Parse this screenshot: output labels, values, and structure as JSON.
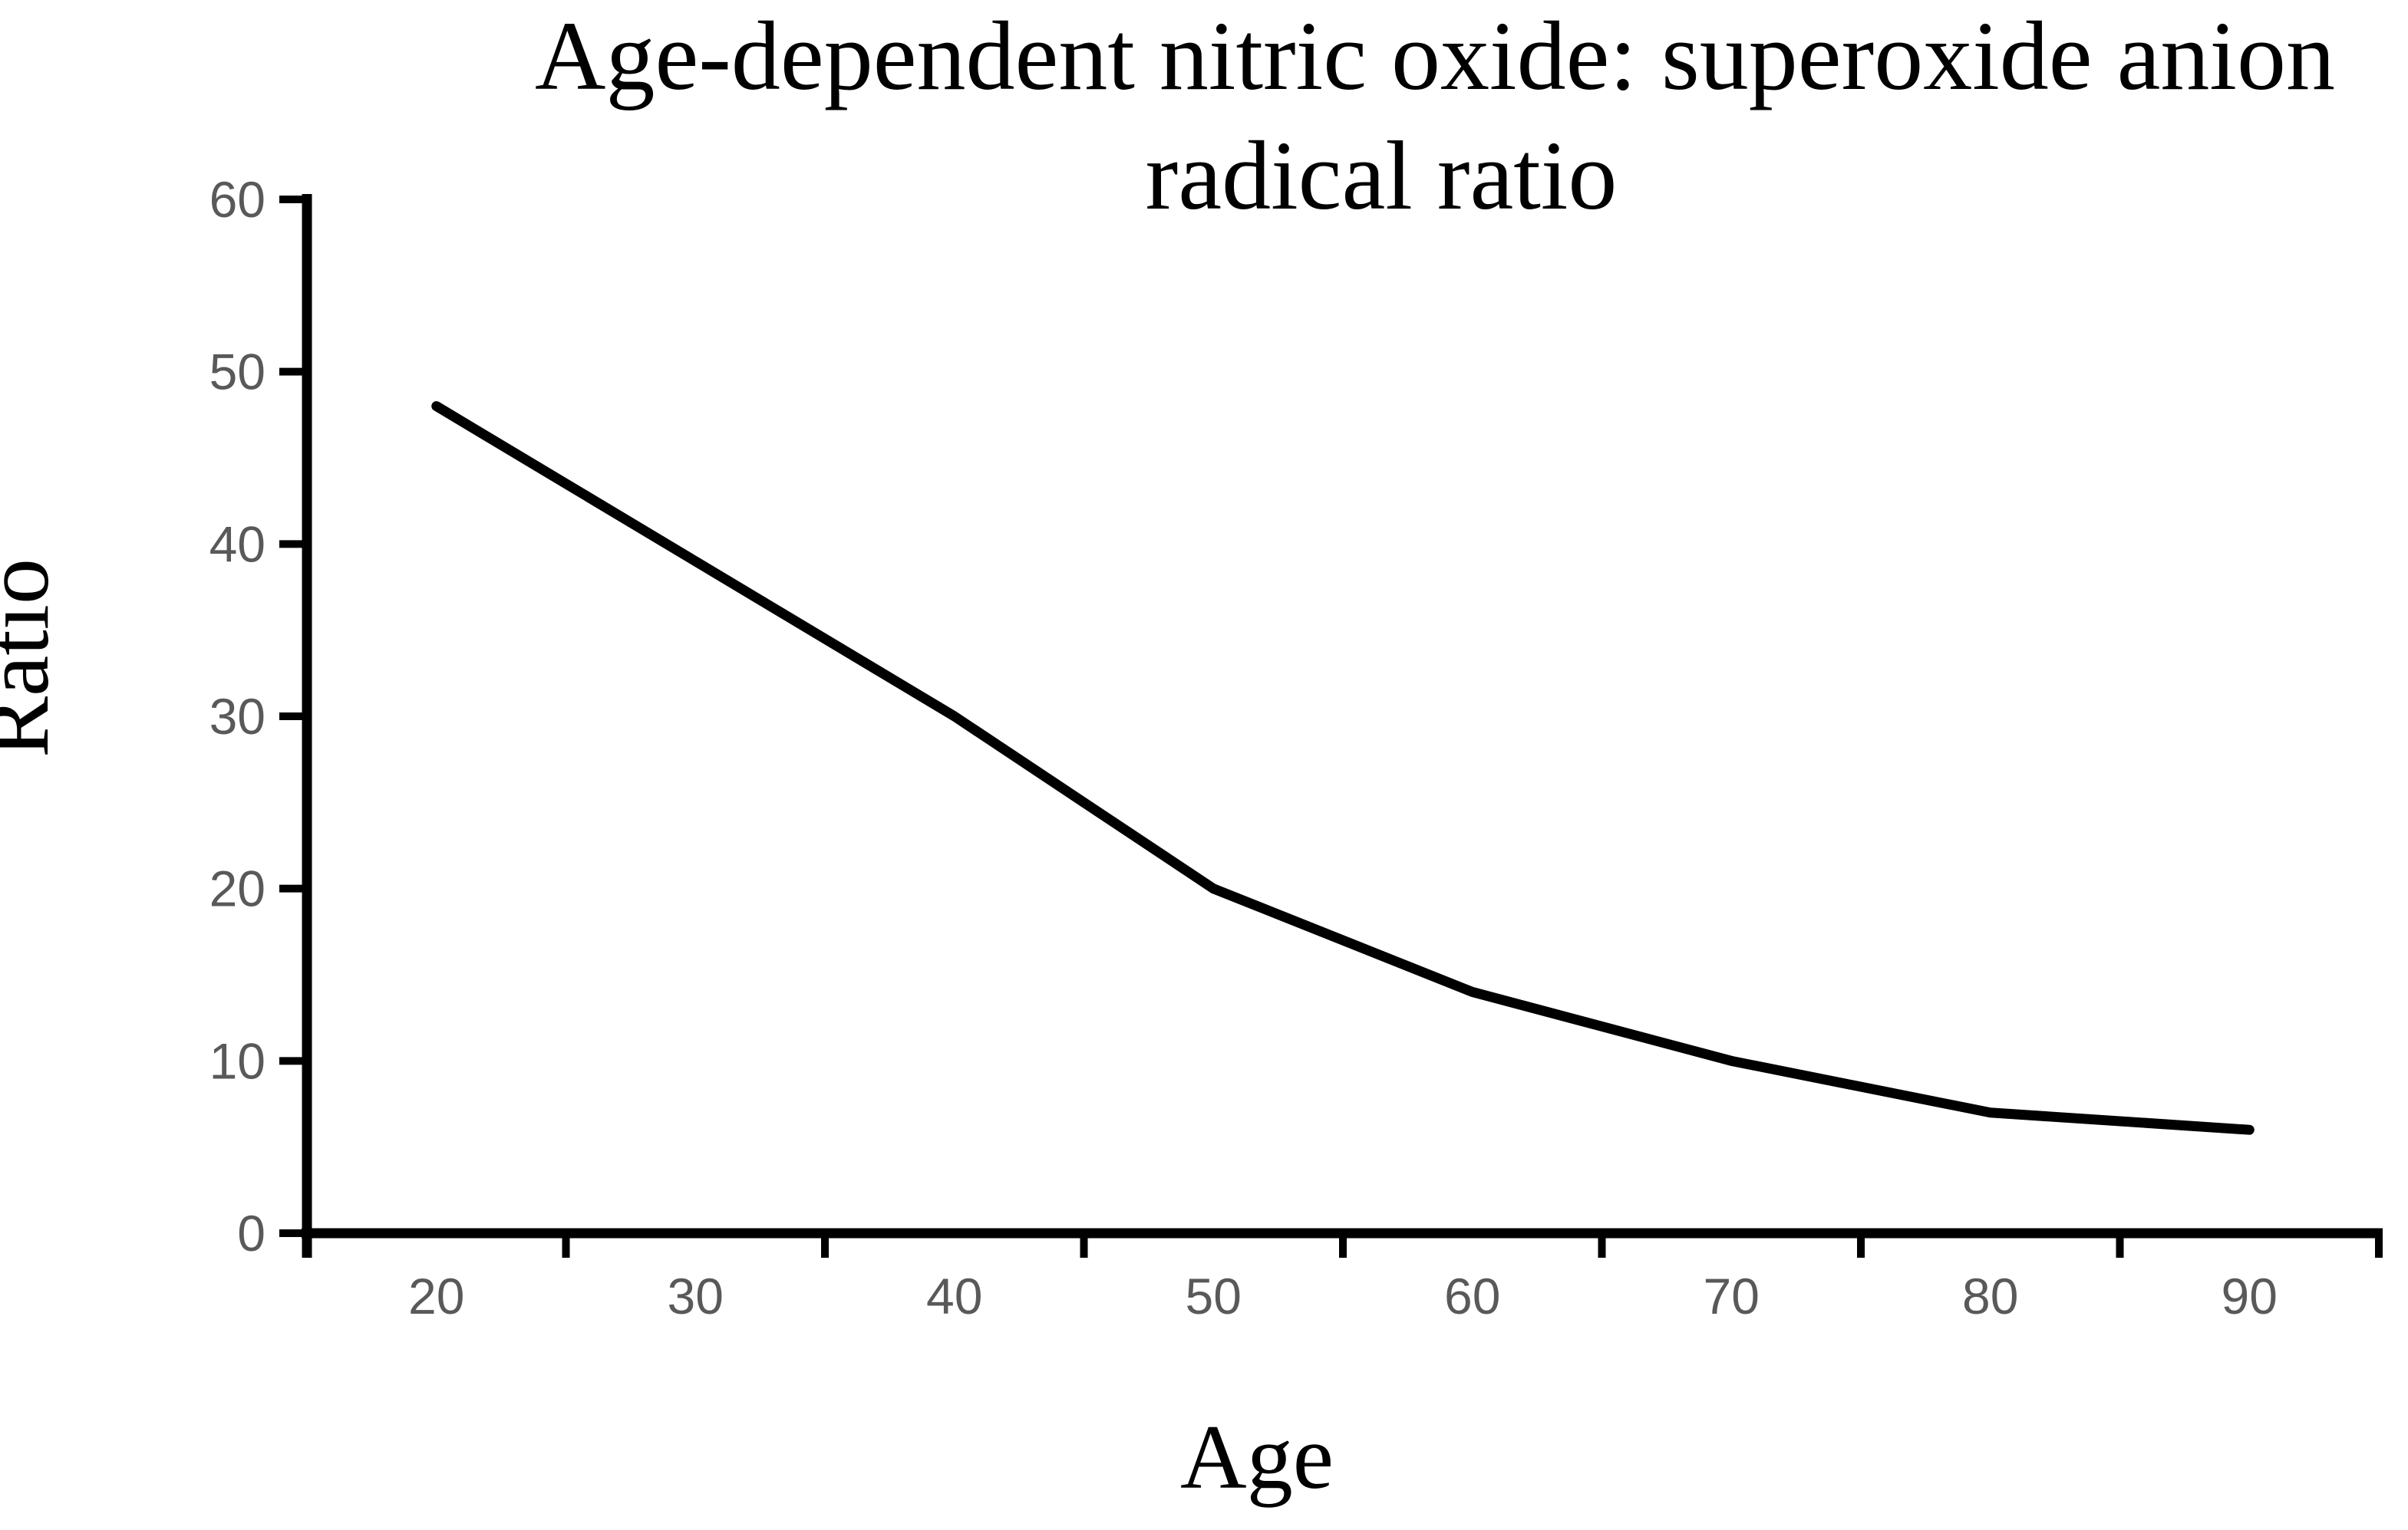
{
  "chart_data": {
    "type": "line",
    "title": "Age-dependent nitric oxide: superoxide anion radical ratio",
    "title_lines": [
      "Age-dependent nitric oxide: superoxide anion",
      "radical ratio"
    ],
    "xlabel": "Age",
    "ylabel": "Ratio",
    "categories": [
      20,
      30,
      40,
      50,
      60,
      70,
      80,
      90
    ],
    "values": [
      48,
      39,
      30,
      20,
      14,
      10,
      7,
      6
    ],
    "x_tick_labels": [
      "20",
      "30",
      "40",
      "50",
      "60",
      "70",
      "80",
      "90"
    ],
    "y_ticks": [
      0,
      10,
      20,
      30,
      40,
      50,
      60
    ],
    "y_tick_labels": [
      "0",
      "10",
      "20",
      "30",
      "40",
      "50",
      "60"
    ],
    "ylim": [
      0,
      60
    ],
    "grid": false,
    "legend_position": "none",
    "x_axis_style": "category-ticks-between-labels",
    "colors": {
      "line": "#000000",
      "axis": "#000000",
      "tick_label": "#595959",
      "text": "#000000",
      "background": "#ffffff"
    }
  }
}
